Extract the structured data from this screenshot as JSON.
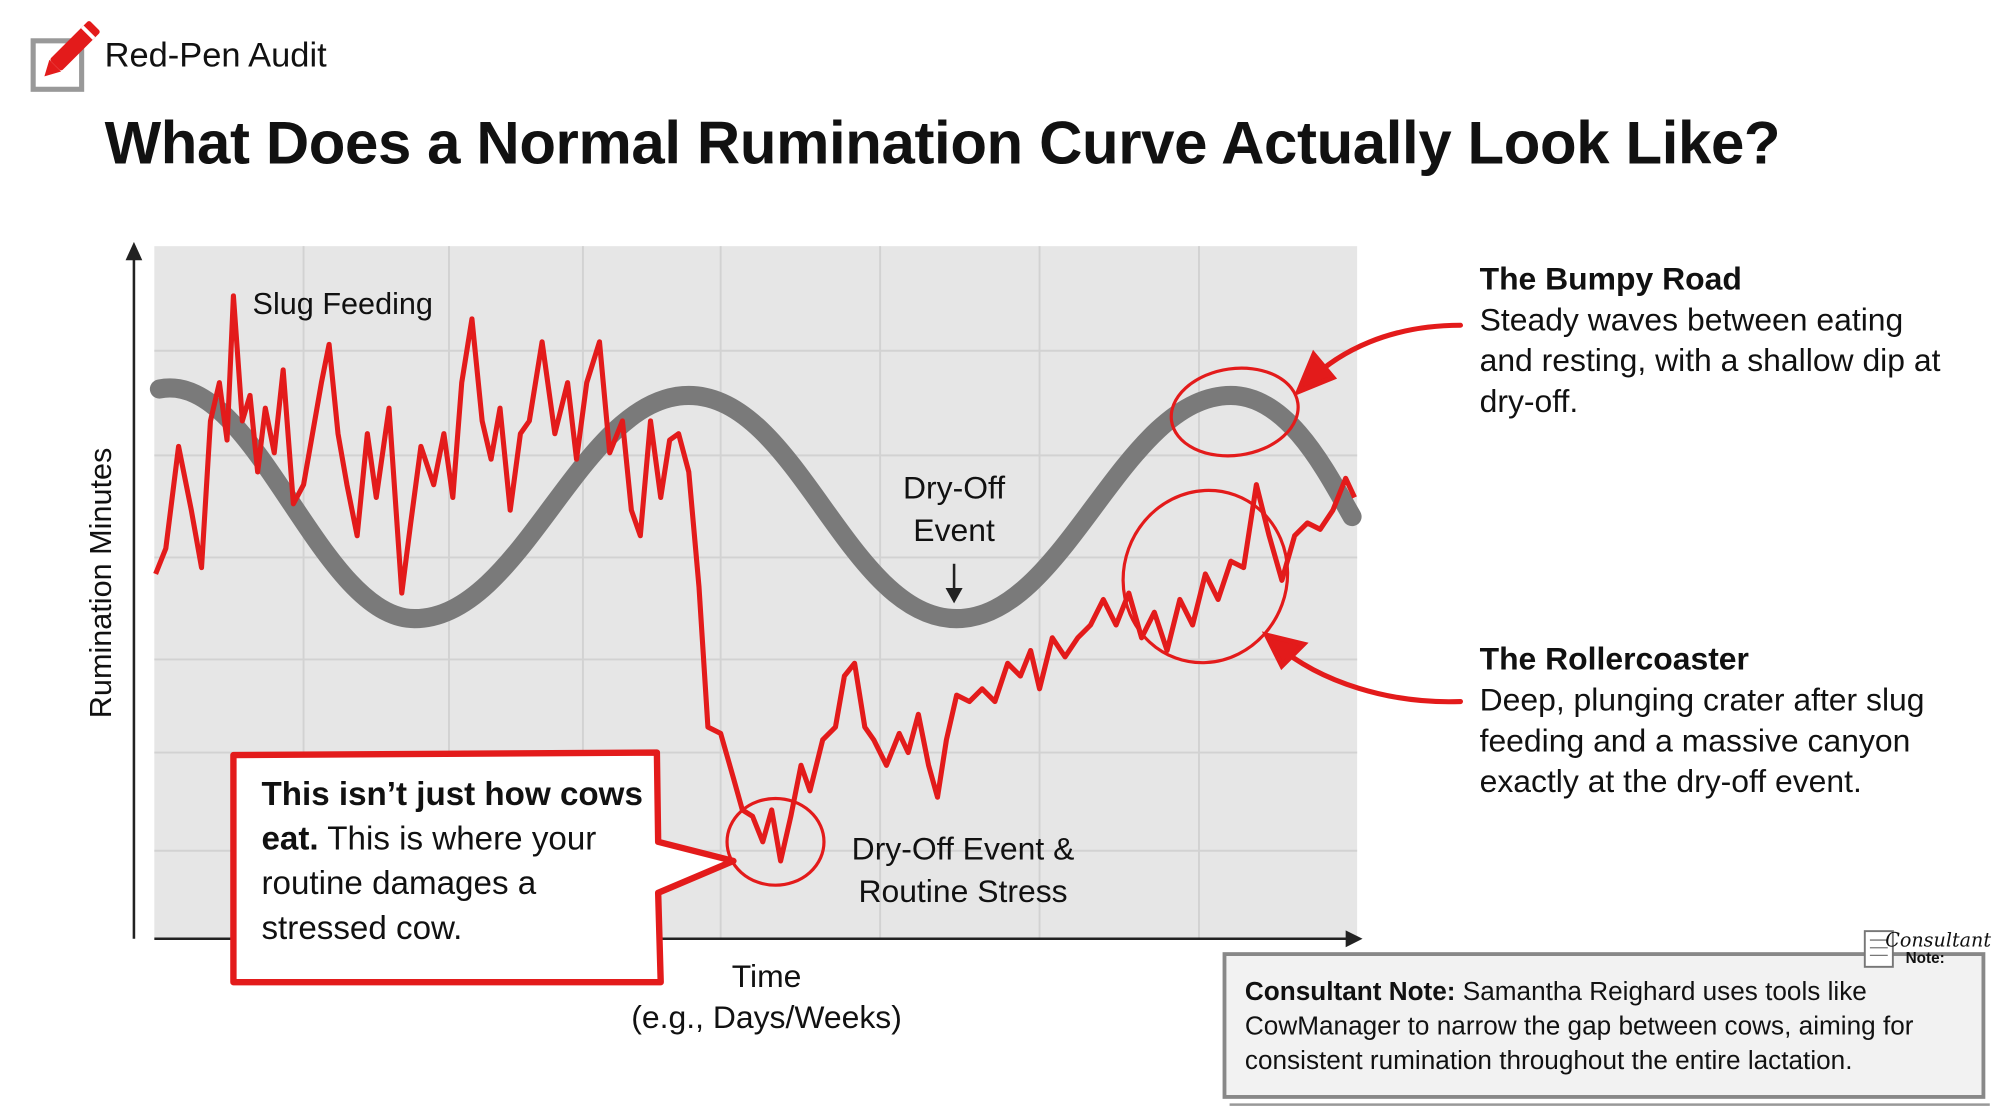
{
  "brand": {
    "name": "Red-Pen Audit",
    "icon": "pencil-edit-icon",
    "accent": "#e31b1b"
  },
  "headline": "What Does a Normal Rumination Curve Actually Look Like?",
  "diagram": {
    "y_axis_label": "Rumination Minutes",
    "x_axis_label_line1": "Time",
    "x_axis_label_line2": "(e.g., Days/Weeks)",
    "annotation_slug": "Slug Feeding",
    "annotation_dryoff_line1": "Dry-Off",
    "annotation_dryoff_line2": "Event",
    "annotation_stress_line1": "Dry-Off Event &",
    "annotation_stress_line2": "Routine Stress",
    "colors": {
      "smooth_curve": "#7a7a7a",
      "erratic_curve": "#e31b1b",
      "plot_bg": "#e6e6e6"
    }
  },
  "bumpy_road": {
    "title": "The Bumpy Road",
    "body": "Steady waves between eating and resting, with a shallow dip at dry-off."
  },
  "rollercoaster": {
    "title": "The Rollercoaster",
    "body": "Deep, plunging crater after slug feeding and a massive canyon exactly at the dry-off event."
  },
  "callout": {
    "bold": "This isn’t just how cows eat.",
    "rest": " This is where your routine damages a stressed cow."
  },
  "consultant_note": {
    "tag_line1": "Consultant",
    "tag_line2": "Note:",
    "label": "Consultant Note:",
    "body": " Samantha Reighard uses tools like CowManager to narrow the gap between cows, aiming for consistent rumination throughout the entire lactation."
  }
}
